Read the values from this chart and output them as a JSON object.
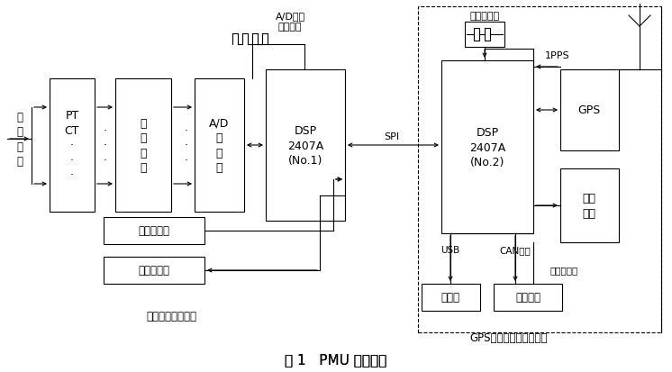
{
  "title": "图 1   PMU 原理框图",
  "bg": "#ffffff",
  "lw": 0.8,
  "boxes": {
    "PTCT": [
      55,
      88,
      50,
      148
    ],
    "filter": [
      128,
      88,
      62,
      148
    ],
    "AD": [
      216,
      88,
      55,
      148
    ],
    "DSP1": [
      295,
      78,
      88,
      168
    ],
    "DSP2": [
      490,
      68,
      102,
      192
    ],
    "GPS": [
      622,
      78,
      65,
      90
    ],
    "LCD": [
      622,
      188,
      65,
      82
    ],
    "sw_in": [
      115,
      242,
      112,
      30
    ],
    "sw_out": [
      115,
      286,
      112,
      30
    ],
    "gkj": [
      468,
      316,
      65,
      30
    ],
    "ctrl": [
      548,
      316,
      76,
      30
    ],
    "dash": [
      464,
      8,
      270,
      362
    ]
  },
  "labels": {
    "elec": [
      22,
      155,
      "电\n力\n信\n号",
      8.5
    ],
    "PTCT": [
      80,
      162,
      "PT\nCT\n·\n·\n·",
      9
    ],
    "filter": [
      159,
      162,
      "前\n置\n滤\n波",
      9
    ],
    "AD": [
      243,
      162,
      "A/D\n转\n换\n器",
      9
    ],
    "DSP1": [
      339,
      162,
      "DSP\n2407A\n(No.1)",
      9
    ],
    "DSP2": [
      541,
      164,
      "DSP\n2407A\n(No.2)",
      9
    ],
    "GPS": [
      654,
      123,
      "GPS",
      9
    ],
    "LCD": [
      654,
      229,
      "液晶\n显示",
      9
    ],
    "sw_in": [
      171,
      257,
      "开关量输入",
      8.5
    ],
    "sw_out": [
      171,
      301,
      "开关量输出",
      8.5
    ],
    "gkj": [
      500,
      331,
      "工控机",
      8.5
    ],
    "ctrl": [
      586,
      331,
      "控制中心",
      8.5
    ],
    "ad_trig1": [
      322,
      18,
      "A/D采样",
      8
    ],
    "ad_trig2": [
      322,
      30,
      "触发脉冲",
      8
    ],
    "crystal_lbl": [
      538,
      18,
      "高精度晶振",
      8
    ],
    "ipps": [
      619,
      62,
      "1PPS",
      8
    ],
    "spi": [
      435,
      152,
      "SPI",
      8
    ],
    "usb": [
      500,
      278,
      "USB",
      7.5
    ],
    "can": [
      572,
      278,
      "CAN总线",
      7.5
    ],
    "ethernet": [
      626,
      300,
      "工业以太网",
      7.5
    ],
    "sec_left": [
      190,
      352,
      "相量的测量与运算",
      8.5
    ],
    "sec_right": [
      565,
      376,
      "GPS同步脉冲产生与通信",
      8.5
    ]
  }
}
